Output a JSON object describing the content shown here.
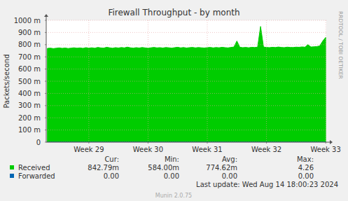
{
  "chart_data": {
    "type": "area",
    "title": "Firewall Throughput - by month",
    "y_label": "Packets/second",
    "watermark": "RRDTOOL / TOBI OETIKER",
    "last_update": "Last update: Wed Aug 14 18:00:23 2024",
    "footer": "Munin 2.0.75",
    "stat_headers": [
      "Cur:",
      "Min:",
      "Avg:",
      "Max:"
    ],
    "grid": true,
    "xlim": [
      28.28,
      33.01
    ],
    "xticks": [
      {
        "value": 29,
        "label": "Week 29"
      },
      {
        "value": 30,
        "label": "Week 30"
      },
      {
        "value": 31,
        "label": "Week 31"
      },
      {
        "value": 32,
        "label": "Week 32"
      },
      {
        "value": 33,
        "label": "Week 33"
      }
    ],
    "ylim": [
      0,
      1
    ],
    "yticks": [
      0,
      {
        "value": 0.1,
        "label": "100 m"
      },
      {
        "value": 0.2,
        "label": "200 m"
      },
      {
        "value": 0.3,
        "label": "300 m"
      },
      {
        "value": 0.4,
        "label": "400 m"
      },
      {
        "value": 0.5,
        "label": "500 m"
      },
      {
        "value": 0.6,
        "label": "600 m"
      },
      {
        "value": 0.7,
        "label": "700 m"
      },
      {
        "value": 0.8,
        "label": "800 m"
      },
      {
        "value": 0.9,
        "label": "900 m"
      },
      {
        "value": 1,
        "label": "1000 m"
      }
    ],
    "x": [
      28.3,
      28.35,
      28.4,
      28.45,
      28.5,
      28.55,
      28.6,
      28.65,
      28.7,
      28.75,
      28.8,
      28.85,
      28.9,
      28.95,
      29.0,
      29.05,
      29.1,
      29.15,
      29.2,
      29.25,
      29.3,
      29.35,
      29.4,
      29.45,
      29.5,
      29.55,
      29.6,
      29.65,
      29.7,
      29.75,
      29.8,
      29.85,
      29.9,
      29.95,
      30.0,
      30.05,
      30.1,
      30.15,
      30.2,
      30.25,
      30.3,
      30.35,
      30.4,
      30.45,
      30.5,
      30.55,
      30.6,
      30.65,
      30.7,
      30.75,
      30.8,
      30.85,
      30.9,
      30.95,
      31.0,
      31.05,
      31.1,
      31.15,
      31.2,
      31.25,
      31.3,
      31.35,
      31.4,
      31.45,
      31.5,
      31.55,
      31.6,
      31.65,
      31.7,
      31.75,
      31.8,
      31.85,
      31.9,
      31.95,
      32.0,
      32.05,
      32.1,
      32.15,
      32.2,
      32.25,
      32.3,
      32.35,
      32.4,
      32.45,
      32.5,
      32.55,
      32.6,
      32.65,
      32.7,
      32.75,
      32.8,
      32.85,
      32.9,
      32.95,
      33.0
    ],
    "series": [
      {
        "name": "Received",
        "color": "#00cc00",
        "stats": [
          "842.79m",
          "584.00m",
          "774.62m",
          "4.26"
        ],
        "values": [
          0.77,
          0.772,
          0.768,
          0.771,
          0.774,
          0.77,
          0.773,
          0.769,
          0.772,
          0.775,
          0.771,
          0.774,
          0.77,
          0.776,
          0.772,
          0.775,
          0.771,
          0.778,
          0.774,
          0.772,
          0.779,
          0.775,
          0.771,
          0.776,
          0.773,
          0.777,
          0.774,
          0.78,
          0.775,
          0.772,
          0.776,
          0.773,
          0.777,
          0.774,
          0.771,
          0.775,
          0.778,
          0.774,
          0.776,
          0.773,
          0.777,
          0.775,
          0.772,
          0.776,
          0.779,
          0.774,
          0.777,
          0.773,
          0.776,
          0.778,
          0.774,
          0.777,
          0.775,
          0.773,
          0.776,
          0.778,
          0.774,
          0.777,
          0.775,
          0.779,
          0.776,
          0.774,
          0.778,
          0.781,
          0.83,
          0.779,
          0.776,
          0.778,
          0.775,
          0.779,
          0.777,
          0.78,
          0.95,
          0.781,
          0.778,
          0.776,
          0.779,
          0.777,
          0.781,
          0.778,
          0.776,
          0.78,
          0.778,
          0.777,
          0.78,
          0.779,
          0.782,
          0.78,
          0.8,
          0.781,
          0.783,
          0.785,
          0.79,
          0.83,
          0.86
        ]
      },
      {
        "name": "Forwarded",
        "color": "#0066b3",
        "stats": [
          "0.00",
          "0.00",
          "0.00",
          "0.00"
        ],
        "values": [
          0,
          0,
          0,
          0,
          0,
          0,
          0,
          0,
          0,
          0,
          0,
          0,
          0,
          0,
          0,
          0,
          0,
          0,
          0,
          0,
          0,
          0,
          0,
          0,
          0,
          0,
          0,
          0,
          0,
          0,
          0,
          0,
          0,
          0,
          0,
          0,
          0,
          0,
          0,
          0,
          0,
          0,
          0,
          0,
          0,
          0,
          0,
          0,
          0,
          0,
          0,
          0,
          0,
          0,
          0,
          0,
          0,
          0,
          0,
          0,
          0,
          0,
          0,
          0,
          0,
          0,
          0,
          0,
          0,
          0,
          0,
          0,
          0,
          0,
          0,
          0,
          0,
          0,
          0,
          0,
          0,
          0,
          0,
          0,
          0,
          0,
          0,
          0,
          0,
          0,
          0,
          0,
          0,
          0,
          0
        ]
      }
    ]
  }
}
